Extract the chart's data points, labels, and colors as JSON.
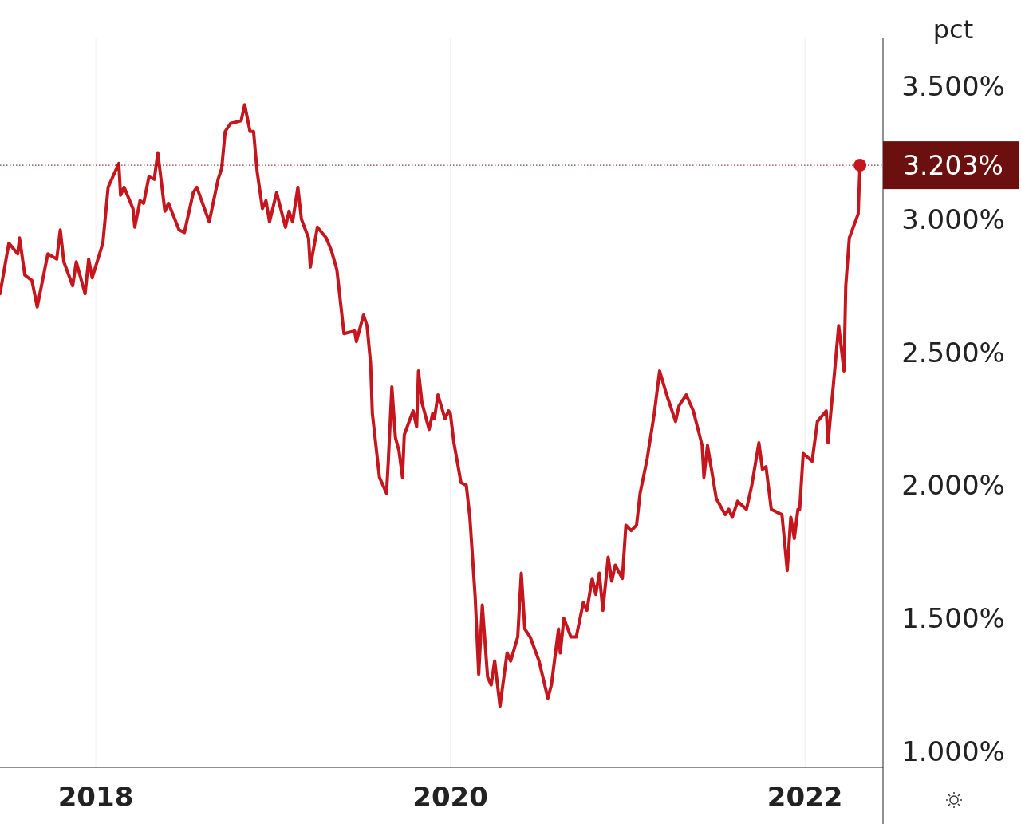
{
  "chart_data": {
    "type": "line",
    "ylabel": "pct",
    "grid": "x",
    "xlim": [
      2017.46,
      2022.44
    ],
    "ylim": [
      0.94,
      3.68
    ],
    "xticks": [
      2018,
      2020,
      2022
    ],
    "yticks": [
      {
        "value": 1,
        "label": "1.000%"
      },
      {
        "value": 1.5,
        "label": "1.500%"
      },
      {
        "value": 2,
        "label": "2.000%"
      },
      {
        "value": 2.5,
        "label": "2.500%"
      },
      {
        "value": 3,
        "label": "3.000%"
      },
      {
        "value": 3.5,
        "label": "3.500%"
      }
    ],
    "ref_lines": [
      {
        "axis": "y",
        "value": 3.203,
        "label": "3.203%",
        "color": "#6b0f0f",
        "line_style": "dotted"
      }
    ],
    "series": [
      {
        "color": "#c4161c",
        "x": [
          2017.46,
          2017.51,
          2017.56,
          2017.57,
          2017.6,
          2017.64,
          2017.67,
          2017.73,
          2017.78,
          2017.8,
          2017.82,
          2017.87,
          2017.89,
          2017.94,
          2017.96,
          2017.98,
          2018.04,
          2018.07,
          2018.13,
          2018.14,
          2018.16,
          2018.21,
          2018.22,
          2018.25,
          2018.27,
          2018.3,
          2018.33,
          2018.35,
          2018.39,
          2018.41,
          2018.47,
          2018.5,
          2018.55,
          2018.57,
          2018.64,
          2018.69,
          2018.71,
          2018.73,
          2018.76,
          2018.82,
          2018.84,
          2018.87,
          2018.89,
          2018.91,
          2018.94,
          2018.96,
          2018.98,
          2019.02,
          2019.07,
          2019.09,
          2019.11,
          2019.14,
          2019.16,
          2019.2,
          2019.21,
          2019.25,
          2019.3,
          2019.33,
          2019.36,
          2019.38,
          2019.4,
          2019.46,
          2019.47,
          2019.51,
          2019.53,
          2019.55,
          2019.56,
          2019.6,
          2019.64,
          2019.65,
          2019.67,
          2019.69,
          2019.71,
          2019.73,
          2019.74,
          2019.79,
          2019.81,
          2019.82,
          2019.84,
          2019.88,
          2019.9,
          2019.91,
          2019.93,
          2019.97,
          2019.99,
          2020.0,
          2020.02,
          2020.06,
          2020.09,
          2020.11,
          2020.14,
          2020.16,
          2020.18,
          2020.21,
          2020.23,
          2020.25,
          2020.28,
          2020.32,
          2020.34,
          2020.38,
          2020.4,
          2020.42,
          2020.45,
          2020.5,
          2020.55,
          2020.57,
          2020.61,
          2020.62,
          2020.64,
          2020.68,
          2020.71,
          2020.75,
          2020.77,
          2020.8,
          2020.82,
          2020.84,
          2020.86,
          2020.89,
          2020.91,
          2020.93,
          2020.97,
          2020.99,
          2021.02,
          2021.05,
          2021.07,
          2021.11,
          2021.15,
          2021.18,
          2021.22,
          2021.27,
          2021.29,
          2021.33,
          2021.37,
          2021.42,
          2021.43,
          2021.45,
          2021.5,
          2021.55,
          2021.57,
          2021.59,
          2021.62,
          2021.67,
          2021.7,
          2021.74,
          2021.76,
          2021.78,
          2021.81,
          2021.87,
          2021.9,
          2021.92,
          2021.94,
          2021.96,
          2021.97,
          2021.99,
          2022.04,
          2022.07,
          2022.12,
          2022.13,
          2022.17,
          2022.19,
          2022.22,
          2022.23,
          2022.25,
          2022.3,
          2022.31
        ],
        "values": [
          2.72,
          2.91,
          2.87,
          2.93,
          2.79,
          2.77,
          2.67,
          2.87,
          2.85,
          2.96,
          2.84,
          2.75,
          2.84,
          2.72,
          2.85,
          2.78,
          2.91,
          3.12,
          3.21,
          3.09,
          3.12,
          3.04,
          2.97,
          3.07,
          3.06,
          3.16,
          3.15,
          3.25,
          3.03,
          3.06,
          2.96,
          2.95,
          3.1,
          3.12,
          2.99,
          3.15,
          3.19,
          3.33,
          3.36,
          3.37,
          3.43,
          3.33,
          3.33,
          3.18,
          3.04,
          3.07,
          2.99,
          3.1,
          2.97,
          3.03,
          2.99,
          3.12,
          3.0,
          2.93,
          2.82,
          2.97,
          2.93,
          2.88,
          2.81,
          2.69,
          2.57,
          2.58,
          2.54,
          2.64,
          2.6,
          2.46,
          2.27,
          2.03,
          1.97,
          2.09,
          2.37,
          2.18,
          2.13,
          2.03,
          2.19,
          2.28,
          2.22,
          2.43,
          2.31,
          2.21,
          2.27,
          2.25,
          2.34,
          2.25,
          2.28,
          2.27,
          2.16,
          2.01,
          2.0,
          1.88,
          1.58,
          1.29,
          1.55,
          1.28,
          1.25,
          1.34,
          1.17,
          1.37,
          1.34,
          1.43,
          1.67,
          1.46,
          1.43,
          1.34,
          1.2,
          1.25,
          1.46,
          1.37,
          1.5,
          1.43,
          1.43,
          1.56,
          1.53,
          1.65,
          1.59,
          1.67,
          1.53,
          1.73,
          1.64,
          1.7,
          1.65,
          1.85,
          1.83,
          1.85,
          1.97,
          2.1,
          2.27,
          2.43,
          2.34,
          2.24,
          2.3,
          2.34,
          2.28,
          2.15,
          2.03,
          2.15,
          1.95,
          1.89,
          1.91,
          1.88,
          1.94,
          1.91,
          2.0,
          2.16,
          2.06,
          2.07,
          1.91,
          1.89,
          1.68,
          1.88,
          1.8,
          1.91,
          1.91,
          2.12,
          2.09,
          2.24,
          2.28,
          2.16,
          2.45,
          2.6,
          2.43,
          2.75,
          2.93,
          3.02,
          3.203
        ]
      }
    ]
  }
}
